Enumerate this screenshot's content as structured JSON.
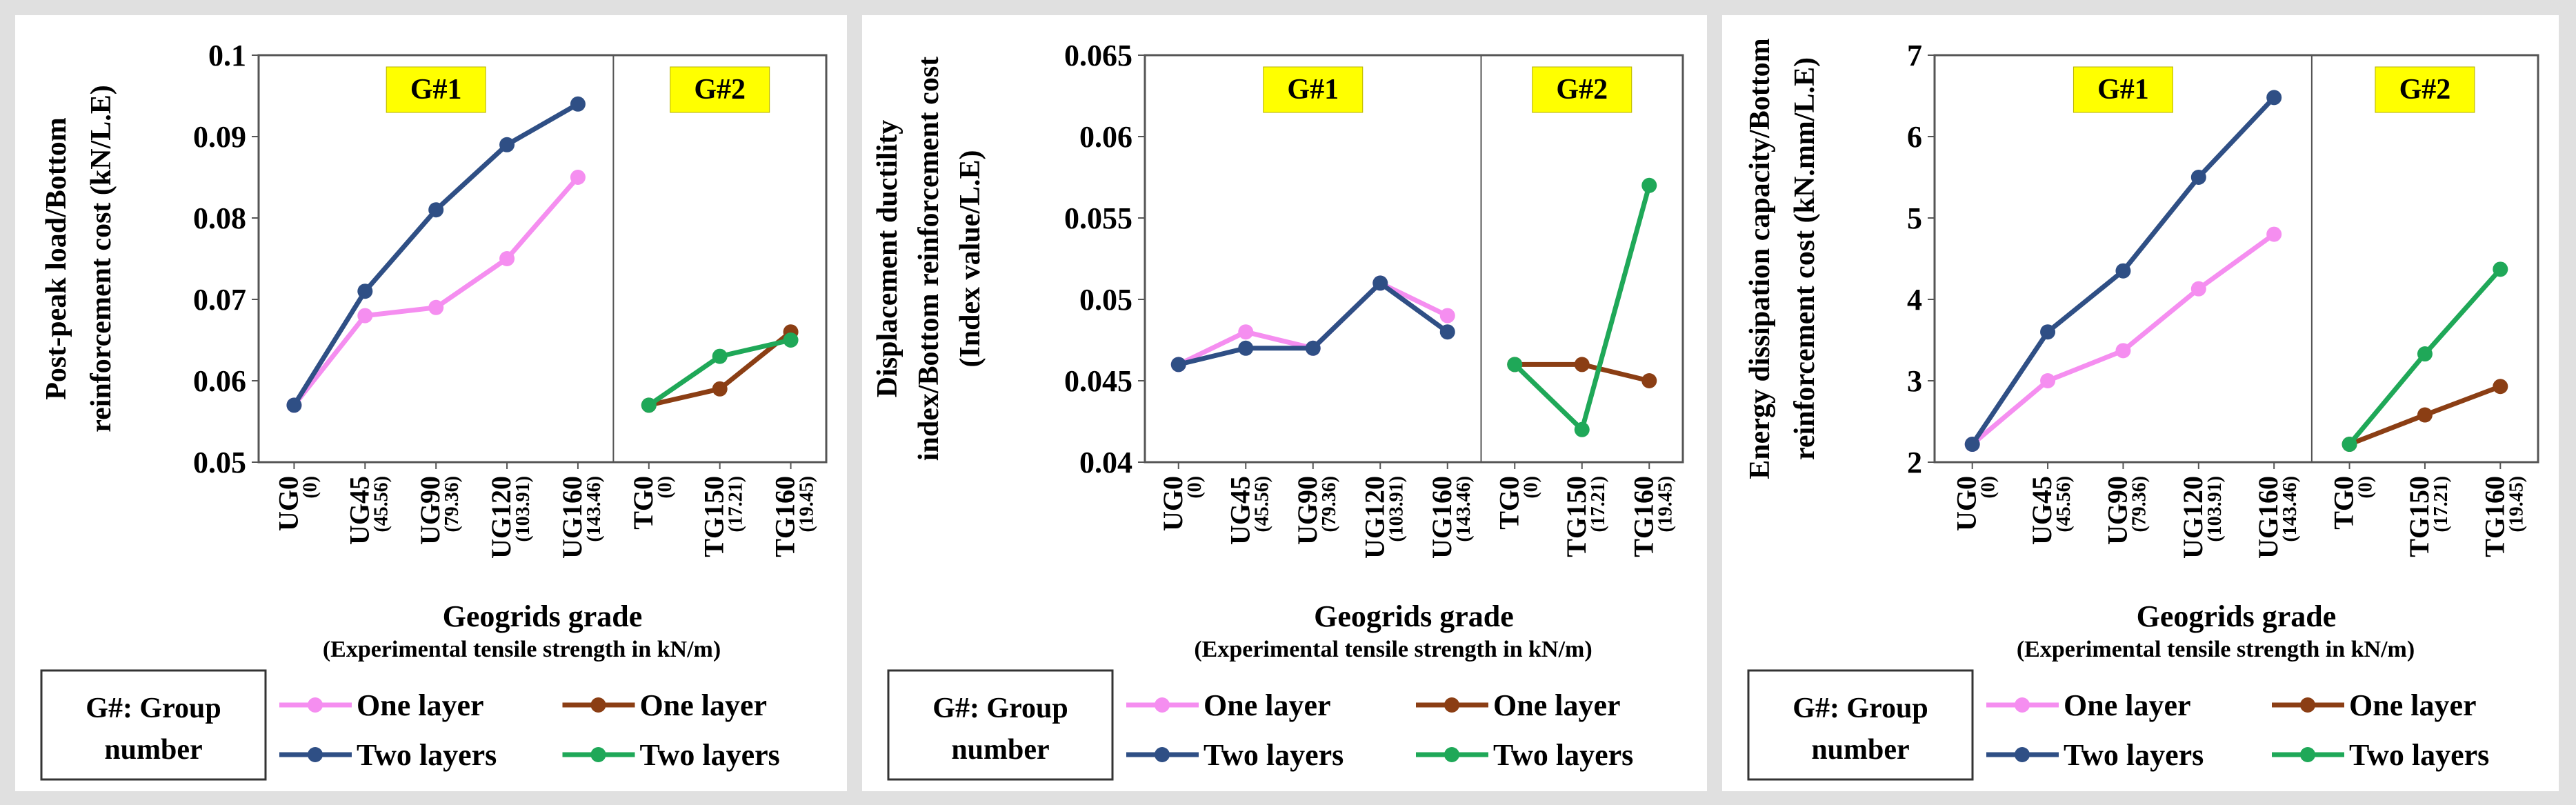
{
  "chart_data": [
    {
      "type": "line",
      "title": "",
      "ylabel": [
        "Post-peak load/Bottom",
        "reinforcement cost (kN/L.E)"
      ],
      "xlabel": "Geogrids grade",
      "xlabel_sub": "(Experimental tensile strength in kN/m)",
      "ylim": [
        0.05,
        0.1
      ],
      "yticks": [
        "0.05",
        "0.06",
        "0.07",
        "0.08",
        "0.09",
        "0.1"
      ],
      "categories": [
        "UG0",
        "UG45",
        "UG90",
        "UG120",
        "UG160",
        "TG0",
        "TG150",
        "TG160"
      ],
      "category_strengths": [
        "(0)",
        "(45.56)",
        "(79.36)",
        "(103.91)",
        "(143.46)",
        "(0)",
        "(17.21)",
        "(19.45)"
      ],
      "groups": [
        {
          "label": "G#1"
        },
        {
          "label": "G#2"
        }
      ],
      "series": [
        {
          "name": "One layer",
          "group": "G#1",
          "color": "#f58ef0",
          "x": [
            0,
            1,
            2,
            3,
            4
          ],
          "values": [
            0.057,
            0.068,
            0.069,
            0.075,
            0.085
          ]
        },
        {
          "name": "Two layers",
          "group": "G#1",
          "color": "#2f4f85",
          "x": [
            0,
            1,
            2,
            3,
            4
          ],
          "values": [
            0.057,
            0.071,
            0.081,
            0.089,
            0.094
          ]
        },
        {
          "name": "One layer",
          "group": "G#2",
          "color": "#8b3e14",
          "x": [
            5,
            6,
            7
          ],
          "values": [
            0.057,
            0.059,
            0.066
          ]
        },
        {
          "name": "Two layers",
          "group": "G#2",
          "color": "#1fa858",
          "x": [
            5,
            6,
            7
          ],
          "values": [
            0.057,
            0.063,
            0.065
          ]
        }
      ]
    },
    {
      "type": "line",
      "title": "",
      "ylabel": [
        "Displacement ductility",
        "index/Bottom reinforcement cost",
        "(Index value/L.E)"
      ],
      "xlabel": "Geogrids grade",
      "xlabel_sub": "(Experimental tensile strength in kN/m)",
      "ylim": [
        0.04,
        0.065
      ],
      "yticks": [
        "0.04",
        "0.045",
        "0.05",
        "0.055",
        "0.06",
        "0.065"
      ],
      "categories": [
        "UG0",
        "UG45",
        "UG90",
        "UG120",
        "UG160",
        "TG0",
        "TG150",
        "TG160"
      ],
      "category_strengths": [
        "(0)",
        "(45.56)",
        "(79.36)",
        "(103.91)",
        "(143.46)",
        "(0)",
        "(17.21)",
        "(19.45)"
      ],
      "groups": [
        {
          "label": "G#1"
        },
        {
          "label": "G#2"
        }
      ],
      "series": [
        {
          "name": "One layer",
          "group": "G#1",
          "color": "#f58ef0",
          "x": [
            0,
            1,
            2,
            3,
            4
          ],
          "values": [
            0.046,
            0.048,
            0.047,
            0.051,
            0.049
          ]
        },
        {
          "name": "Two layers",
          "group": "G#1",
          "color": "#2f4f85",
          "x": [
            0,
            1,
            2,
            3,
            4
          ],
          "values": [
            0.046,
            0.047,
            0.047,
            0.051,
            0.048
          ]
        },
        {
          "name": "One layer",
          "group": "G#2",
          "color": "#8b3e14",
          "x": [
            5,
            6,
            7
          ],
          "values": [
            0.046,
            0.046,
            0.045
          ]
        },
        {
          "name": "Two layers",
          "group": "G#2",
          "color": "#1fa858",
          "x": [
            5,
            6,
            7
          ],
          "values": [
            0.046,
            0.042,
            0.057
          ]
        }
      ]
    },
    {
      "type": "line",
      "title": "",
      "ylabel": [
        "Energy dissipation capacity/Bottom",
        "reinforcement cost (kN.mm/L.E)"
      ],
      "xlabel": "Geogrids grade",
      "xlabel_sub": "(Experimental tensile strength in kN/m)",
      "ylim": [
        2,
        7
      ],
      "yticks": [
        "2",
        "3",
        "4",
        "5",
        "6",
        "7"
      ],
      "categories": [
        "UG0",
        "UG45",
        "UG90",
        "UG120",
        "UG160",
        "TG0",
        "TG150",
        "TG160"
      ],
      "category_strengths": [
        "(0)",
        "(45.56)",
        "(79.36)",
        "(103.91)",
        "(143.46)",
        "(0)",
        "(17.21)",
        "(19.45)"
      ],
      "groups": [
        {
          "label": "G#1"
        },
        {
          "label": "G#2"
        }
      ],
      "series": [
        {
          "name": "One layer",
          "group": "G#1",
          "color": "#f58ef0",
          "x": [
            0,
            1,
            2,
            3,
            4
          ],
          "values": [
            2.22,
            3.0,
            3.37,
            4.13,
            4.8
          ]
        },
        {
          "name": "Two layers",
          "group": "G#1",
          "color": "#2f4f85",
          "x": [
            0,
            1,
            2,
            3,
            4
          ],
          "values": [
            2.22,
            3.6,
            4.35,
            5.5,
            6.48
          ]
        },
        {
          "name": "One layer",
          "group": "G#2",
          "color": "#8b3e14",
          "x": [
            5,
            6,
            7
          ],
          "values": [
            2.22,
            2.58,
            2.93
          ]
        },
        {
          "name": "Two layers",
          "group": "G#2",
          "color": "#1fa858",
          "x": [
            5,
            6,
            7
          ],
          "values": [
            2.22,
            3.33,
            4.37
          ]
        }
      ]
    }
  ],
  "legend": {
    "group_label": [
      "G#: Group",
      "number"
    ],
    "entries": [
      {
        "label": "One layer",
        "color": "#f58ef0"
      },
      {
        "label": "Two layers",
        "color": "#2f4f85"
      },
      {
        "label": "One layer",
        "color": "#8b3e14"
      },
      {
        "label": "Two layers",
        "color": "#1fa858"
      }
    ]
  }
}
